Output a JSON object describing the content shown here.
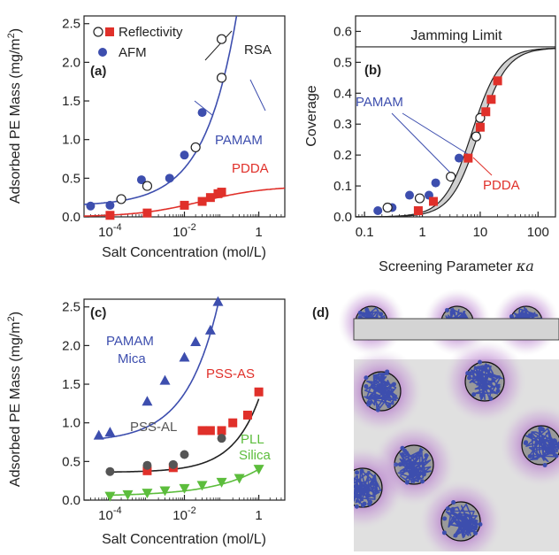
{
  "panels": {
    "a": {
      "label": "(a)",
      "ylabel_main": "Adsorbed PE Mass (mg/m",
      "ylabel_sup": "2",
      "ylabel_end": ")",
      "xlabel": "Salt Concentration (mol/L)"
    },
    "b": {
      "label": "(b)",
      "ylabel": "Coverage",
      "xlabel_main": "Screening Parameter ",
      "xlabel_sym": "κa"
    },
    "c": {
      "label": "(c)",
      "ylabel_main": "Adsorbed PE Mass (mg/m",
      "ylabel_sup": "2",
      "ylabel_end": ")",
      "xlabel": "Salt Concentration (mol/L)"
    },
    "d": {
      "label": "(d)"
    }
  },
  "colors": {
    "blue": "#3d4eae",
    "red": "#e0302a",
    "green": "#5cbd3c",
    "dark": "#333333",
    "purple": "#a35cc0",
    "surface": "#d4d4d4",
    "bg": "#e0e0e0"
  },
  "chart_data": [
    {
      "id": "a",
      "type": "scatter",
      "x_scale": "log",
      "xlim": [
        2e-05,
        5
      ],
      "ylim": [
        0,
        2.6
      ],
      "xticks": [
        0.0001,
        0.01,
        1
      ],
      "xtick_labels": [
        {
          "base": "10",
          "exp": "-4"
        },
        {
          "base": "10",
          "exp": "-2"
        },
        {
          "base": "1",
          "exp": ""
        }
      ],
      "yticks": [
        0,
        0.5,
        1,
        1.5,
        2,
        2.5
      ],
      "ytick_labels": [
        "0.0",
        "0.5",
        "1.0",
        "1.5",
        "2.0",
        "2.5"
      ],
      "legend": [
        {
          "marker": "open-circle",
          "label": "Reflectivity",
          "color": "#222222"
        },
        {
          "marker": "filled-square",
          "label": "",
          "color": "#e0302a"
        },
        {
          "marker": "filled-circle",
          "label": "AFM",
          "color": "#3d4eae"
        }
      ],
      "series": [
        {
          "name": "PAMAM",
          "marker": "circle",
          "color": "#3d4eae",
          "x": [
            3e-05,
            0.0001,
            0.0007,
            0.004,
            0.01
          ],
          "y": [
            0.14,
            0.15,
            0.48,
            0.5,
            0.8
          ]
        },
        {
          "marker": "open-circle",
          "color": "#222222",
          "x": [
            0.0002,
            0.001,
            0.02,
            0.1
          ],
          "y": [
            0.23,
            0.4,
            0.9,
            2.3
          ]
        },
        {
          "marker": "circle",
          "color": "#3d4eae",
          "x": [
            0.03
          ],
          "y": [
            1.35
          ]
        },
        {
          "marker": "open-circle",
          "color": "#222222",
          "x": [
            0.1
          ],
          "y": [
            1.8
          ]
        },
        {
          "name": "PDDA",
          "marker": "square",
          "color": "#e0302a",
          "x": [
            0.0001,
            0.001,
            0.01,
            0.03,
            0.05,
            0.08,
            0.1
          ],
          "y": [
            0.02,
            0.05,
            0.15,
            0.2,
            0.25,
            0.3,
            0.32
          ]
        }
      ],
      "annotations": [
        {
          "text": "RSA",
          "color": "#222222"
        },
        {
          "text": "PAMAM",
          "color": "#3d4eae"
        },
        {
          "text": "PDDA",
          "color": "#e0302a"
        }
      ]
    },
    {
      "id": "b",
      "type": "scatter",
      "x_scale": "log",
      "xlim": [
        0.07,
        200
      ],
      "ylim": [
        0,
        0.65
      ],
      "xticks": [
        0.1,
        1,
        10,
        100
      ],
      "xtick_labels": [
        "0.1",
        "1",
        "10",
        "100"
      ],
      "yticks": [
        0,
        0.1,
        0.2,
        0.3,
        0.4,
        0.5,
        0.6
      ],
      "ytick_labels": [
        "0.0",
        "0.1",
        "0.2",
        "0.3",
        "0.4",
        "0.5",
        "0.6"
      ],
      "hline": {
        "y": 0.55,
        "label": "Jamming Limit"
      },
      "series": [
        {
          "name": "PAMAM",
          "marker": "circle",
          "color": "#3d4eae",
          "x": [
            0.17,
            0.3,
            0.6,
            1.3,
            1.7,
            4.3
          ],
          "y": [
            0.02,
            0.03,
            0.07,
            0.07,
            0.11,
            0.19
          ]
        },
        {
          "marker": "open-circle",
          "color": "#222222",
          "x": [
            0.25,
            0.9,
            3.1,
            8.5,
            10
          ],
          "y": [
            0.03,
            0.06,
            0.13,
            0.26,
            0.32
          ]
        },
        {
          "name": "PDDA",
          "marker": "square",
          "color": "#e0302a",
          "x": [
            0.85,
            1.55,
            6.2,
            10,
            12.5,
            15.5,
            20
          ],
          "y": [
            0.02,
            0.05,
            0.19,
            0.29,
            0.34,
            0.38,
            0.44
          ]
        }
      ],
      "annotations": [
        {
          "text": "PAMAM",
          "color": "#3d4eae"
        },
        {
          "text": "PDDA",
          "color": "#e0302a"
        }
      ]
    },
    {
      "id": "c",
      "type": "scatter",
      "x_scale": "log",
      "xlim": [
        2e-05,
        5
      ],
      "ylim": [
        0,
        2.6
      ],
      "xticks": [
        0.0001,
        0.01,
        1
      ],
      "xtick_labels": [
        {
          "base": "10",
          "exp": "-4"
        },
        {
          "base": "10",
          "exp": "-2"
        },
        {
          "base": "1",
          "exp": ""
        }
      ],
      "yticks": [
        0,
        0.5,
        1,
        1.5,
        2,
        2.5
      ],
      "ytick_labels": [
        "0.0",
        "0.5",
        "1.0",
        "1.5",
        "2.0",
        "2.5"
      ],
      "series": [
        {
          "name": "PAMAM Mica",
          "marker": "triangle-up",
          "color": "#3d4eae",
          "x": [
            5e-05,
            0.0001,
            0.001,
            0.003,
            0.01,
            0.02,
            0.05,
            0.08
          ],
          "y": [
            0.84,
            0.88,
            1.28,
            1.55,
            1.85,
            2.05,
            2.2,
            2.57
          ]
        },
        {
          "name": "PSS-AS",
          "marker": "square",
          "color": "#e0302a",
          "x": [
            0.001,
            0.005,
            0.03,
            0.05,
            0.1,
            0.2,
            0.5,
            1
          ],
          "y": [
            0.38,
            0.42,
            0.9,
            0.9,
            0.9,
            1.0,
            1.1,
            1.4
          ]
        },
        {
          "name": "PSS-AL",
          "marker": "circle",
          "color": "#555555",
          "x": [
            0.0001,
            0.001,
            0.005,
            0.01,
            0.1
          ],
          "y": [
            0.37,
            0.45,
            0.46,
            0.59,
            0.8
          ]
        },
        {
          "name": "PLL Silica",
          "marker": "triangle-down",
          "color": "#5cbd3c",
          "x": [
            0.0001,
            0.0003,
            0.001,
            0.003,
            0.01,
            0.03,
            0.1,
            0.3,
            1
          ],
          "y": [
            0.05,
            0.07,
            0.09,
            0.12,
            0.15,
            0.19,
            0.23,
            0.28,
            0.4
          ]
        }
      ],
      "annotations": [
        {
          "text": "PAMAM",
          "color": "#3d4eae"
        },
        {
          "text": "Mica",
          "color": "#3d4eae"
        },
        {
          "text": "PSS-AS",
          "color": "#e0302a"
        },
        {
          "text": "PSS-AL",
          "color": "#555555"
        },
        {
          "text": "PLL",
          "color": "#5cbd3c"
        },
        {
          "text": "Silica",
          "color": "#5cbd3c"
        }
      ]
    }
  ]
}
